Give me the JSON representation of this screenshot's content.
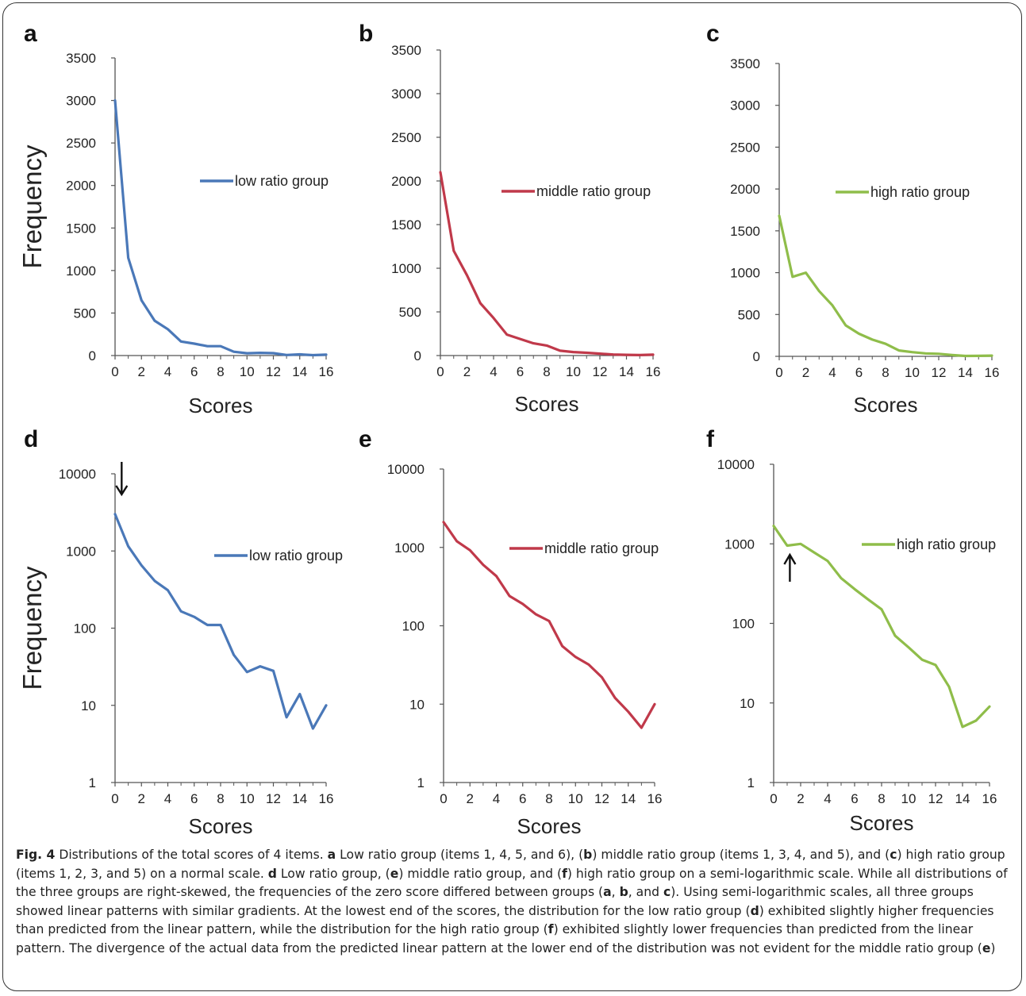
{
  "figure": {
    "caption_label": "Fig. 4",
    "caption_text": " Distributions of the total scores of 4 items. a Low ratio group (items 1, 4, 5, and 6), (b) middle ratio group (items 1, 3, 4, and 5), and (c) high ratio group (items 1, 2, 3, and 5) on a normal scale. d Low ratio group, (e) middle ratio group, and (f) high ratio group on a semi-logarithmic scale. While all distributions of the three groups are right-skewed, the frequencies of the zero score differed between groups (a, b, and c). Using semi-logarithmic scales, all three groups showed linear patterns with similar gradients. At the lowest end of the scores, the distribution for the low ratio group (d) exhibited slightly higher frequencies than predicted from the linear pattern, while the distribution for the high ratio group (f) exhibited slightly lower frequencies than predicted from the linear pattern. The divergence of the actual data from the predicted linear pattern at the lower end of the distribution was not evident for the middle ratio group (e)"
  },
  "colors": {
    "low": "#4a78b8",
    "middle": "#c0394a",
    "high": "#8fbd4a"
  },
  "chart_data": [
    {
      "panel": "a",
      "type": "line",
      "scale": "linear",
      "xlabel": "Scores",
      "ylabel": "Frequency",
      "xlim": [
        0,
        16
      ],
      "ylim": [
        0,
        3500
      ],
      "xticks": [
        "0",
        "2",
        "4",
        "6",
        "8",
        "10",
        "12",
        "14",
        "16"
      ],
      "yticks": [
        "0",
        "500",
        "1000",
        "1500",
        "2000",
        "2500",
        "3000",
        "3500"
      ],
      "legend": "right",
      "series": [
        {
          "name": "low ratio group",
          "color_key": "low",
          "x": [
            0,
            1,
            2,
            3,
            4,
            5,
            6,
            7,
            8,
            9,
            10,
            11,
            12,
            13,
            14,
            15,
            16
          ],
          "y": [
            3000,
            1150,
            650,
            410,
            310,
            165,
            140,
            110,
            110,
            45,
            27,
            32,
            28,
            7,
            14,
            5,
            10
          ]
        }
      ]
    },
    {
      "panel": "b",
      "type": "line",
      "scale": "linear",
      "xlabel": "Scores",
      "ylabel": "",
      "xlim": [
        0,
        16
      ],
      "ylim": [
        0,
        3500
      ],
      "xticks": [
        "0",
        "2",
        "4",
        "6",
        "8",
        "10",
        "12",
        "14",
        "16"
      ],
      "yticks": [
        "0",
        "500",
        "1000",
        "1500",
        "2000",
        "2500",
        "3000",
        "3500"
      ],
      "legend": "right",
      "series": [
        {
          "name": "middle ratio group",
          "color_key": "middle",
          "x": [
            0,
            1,
            2,
            3,
            4,
            5,
            6,
            7,
            8,
            9,
            10,
            11,
            12,
            13,
            14,
            15,
            16
          ],
          "y": [
            2100,
            1200,
            920,
            600,
            430,
            240,
            190,
            140,
            115,
            55,
            40,
            32,
            22,
            12,
            8,
            5,
            10
          ]
        }
      ]
    },
    {
      "panel": "c",
      "type": "line",
      "scale": "linear",
      "xlabel": "Scores",
      "ylabel": "",
      "xlim": [
        0,
        16
      ],
      "ylim": [
        0,
        3500
      ],
      "xticks": [
        "0",
        "2",
        "4",
        "6",
        "8",
        "10",
        "12",
        "14",
        "16"
      ],
      "yticks": [
        "0",
        "500",
        "1000",
        "1500",
        "2000",
        "2500",
        "3000",
        "3500"
      ],
      "legend": "right",
      "series": [
        {
          "name": "high ratio group",
          "color_key": "high",
          "x": [
            0,
            1,
            2,
            3,
            4,
            5,
            6,
            7,
            8,
            9,
            10,
            11,
            12,
            13,
            14,
            15,
            16
          ],
          "y": [
            1680,
            950,
            1000,
            780,
            610,
            370,
            270,
            200,
            150,
            70,
            50,
            35,
            30,
            16,
            5,
            6,
            9
          ]
        }
      ]
    },
    {
      "panel": "d",
      "type": "line",
      "scale": "log",
      "xlabel": "Scores",
      "ylabel": "Frequency",
      "xlim": [
        0,
        16
      ],
      "ylim": [
        1,
        10000
      ],
      "xticks": [
        "0",
        "2",
        "4",
        "6",
        "8",
        "10",
        "12",
        "14",
        "16"
      ],
      "yticks": [
        "1",
        "10",
        "100",
        "1000",
        "10000"
      ],
      "legend": "right",
      "arrow": {
        "direction": "down",
        "at_score": 0.5
      },
      "series": [
        {
          "name": "low ratio group",
          "color_key": "low",
          "x": [
            0,
            1,
            2,
            3,
            4,
            5,
            6,
            7,
            8,
            9,
            10,
            11,
            12,
            13,
            14,
            15,
            16
          ],
          "y": [
            3000,
            1150,
            650,
            410,
            310,
            165,
            140,
            110,
            110,
            45,
            27,
            32,
            28,
            7,
            14,
            5,
            10
          ]
        }
      ]
    },
    {
      "panel": "e",
      "type": "line",
      "scale": "log",
      "xlabel": "Scores",
      "ylabel": "",
      "xlim": [
        0,
        16
      ],
      "ylim": [
        1,
        10000
      ],
      "xticks": [
        "0",
        "2",
        "4",
        "6",
        "8",
        "10",
        "12",
        "14",
        "16"
      ],
      "yticks": [
        "1",
        "10",
        "100",
        "1000",
        "10000"
      ],
      "legend": "right",
      "series": [
        {
          "name": "middle ratio group",
          "color_key": "middle",
          "x": [
            0,
            1,
            2,
            3,
            4,
            5,
            6,
            7,
            8,
            9,
            10,
            11,
            12,
            13,
            14,
            15,
            16
          ],
          "y": [
            2100,
            1200,
            920,
            600,
            430,
            240,
            190,
            140,
            115,
            55,
            40,
            32,
            22,
            12,
            8,
            5,
            10
          ]
        }
      ]
    },
    {
      "panel": "f",
      "type": "line",
      "scale": "log",
      "xlabel": "Scores",
      "ylabel": "",
      "xlim": [
        0,
        16
      ],
      "ylim": [
        1,
        10000
      ],
      "xticks": [
        "0",
        "2",
        "4",
        "6",
        "8",
        "10",
        "12",
        "14",
        "16"
      ],
      "yticks": [
        "1",
        "10",
        "100",
        "1000",
        "10000"
      ],
      "legend": "right",
      "arrow": {
        "direction": "up",
        "at_score": 1.2
      },
      "series": [
        {
          "name": "high ratio group",
          "color_key": "high",
          "x": [
            0,
            1,
            2,
            3,
            4,
            5,
            6,
            7,
            8,
            9,
            10,
            11,
            12,
            13,
            14,
            15,
            16
          ],
          "y": [
            1680,
            950,
            1000,
            780,
            610,
            370,
            270,
            200,
            150,
            70,
            50,
            35,
            30,
            16,
            5,
            6,
            9
          ]
        }
      ]
    }
  ]
}
